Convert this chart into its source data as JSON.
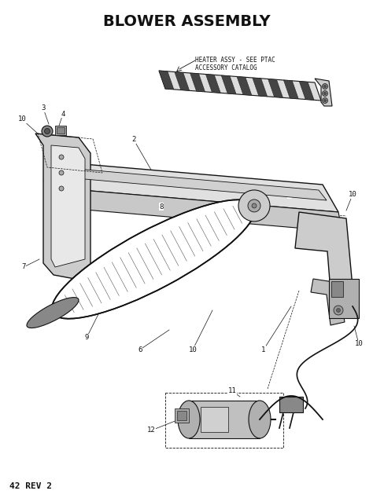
{
  "title": "BLOWER ASSEMBLY",
  "footer_text": "42 REV 2",
  "heater_label": "HEATER ASSY - SEE PTAC\nACCESSORY CATALOG",
  "background_color": "#ffffff",
  "line_color": "#111111",
  "figsize": [
    4.74,
    6.34
  ],
  "dpi": 100
}
